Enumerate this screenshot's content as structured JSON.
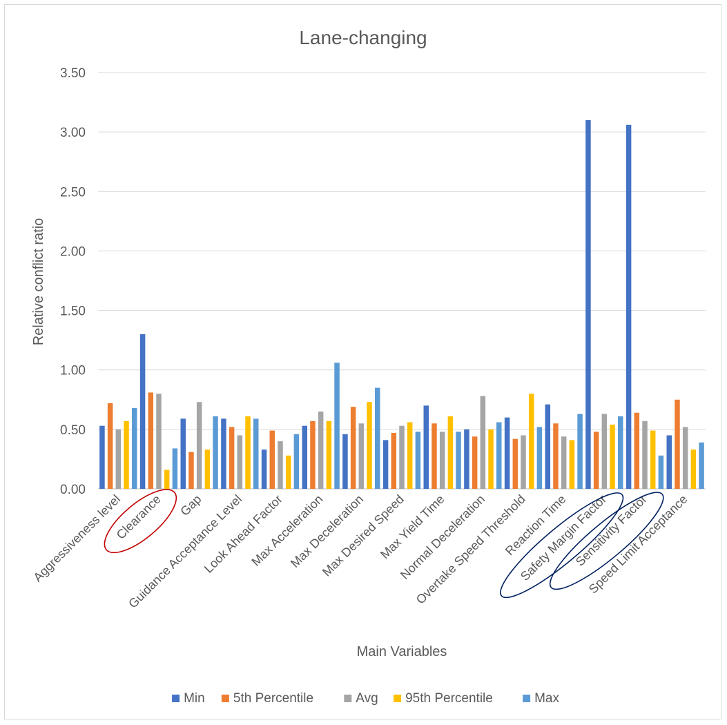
{
  "chart_data": {
    "type": "bar",
    "title": "Lane-changing",
    "xlabel": "Main Variables",
    "ylabel": "Relative conflict ratio",
    "ylim": [
      0,
      3.5
    ],
    "yticks": [
      "0.00",
      "0.50",
      "1.00",
      "1.50",
      "2.00",
      "2.50",
      "3.00",
      "3.50"
    ],
    "grid": true,
    "legend_position": "bottom",
    "categories": [
      "Aggressiveness level",
      "Clearance",
      "Gap",
      "Guidance Acceptance Level",
      "Look Ahead Factor",
      "Max Acceleration",
      "Max Deceleration",
      "Max Desired Speed",
      "Max Yield Time",
      "Normal Deceleration",
      "Overtake Speed Threshold",
      "Reaction Time",
      "Safety Margin Factor",
      "Sensitivity Factor",
      "Speed Limit Acceptance"
    ],
    "series": [
      {
        "name": "Min",
        "color": "#4472C4",
        "values": [
          0.53,
          1.3,
          0.59,
          0.59,
          0.33,
          0.53,
          0.46,
          0.41,
          0.7,
          0.5,
          0.6,
          0.71,
          3.1,
          3.06,
          0.45
        ]
      },
      {
        "name": "5th Percentile",
        "color": "#ED7D31",
        "values": [
          0.72,
          0.81,
          0.31,
          0.52,
          0.49,
          0.57,
          0.69,
          0.47,
          0.55,
          0.44,
          0.42,
          0.55,
          0.48,
          0.64,
          0.75
        ]
      },
      {
        "name": "Avg",
        "color": "#A5A5A5",
        "values": [
          0.5,
          0.8,
          0.73,
          0.45,
          0.4,
          0.65,
          0.55,
          0.53,
          0.48,
          0.78,
          0.45,
          0.44,
          0.63,
          0.57,
          0.52
        ]
      },
      {
        "name": "95th Percentile",
        "color": "#FFC000",
        "values": [
          0.57,
          0.16,
          0.33,
          0.61,
          0.28,
          0.57,
          0.73,
          0.56,
          0.61,
          0.5,
          0.8,
          0.41,
          0.54,
          0.49,
          0.33
        ]
      },
      {
        "name": "Max",
        "color": "#5B9BD5",
        "values": [
          0.68,
          0.34,
          0.61,
          0.59,
          0.46,
          1.06,
          0.85,
          0.48,
          0.48,
          0.56,
          0.52,
          0.63,
          0.61,
          0.28,
          0.39
        ]
      }
    ],
    "annotations": [
      {
        "type": "ellipse",
        "target": "Clearance",
        "color": "#C00000"
      },
      {
        "type": "ellipse",
        "target": "Safety Margin Factor",
        "color": "#002060"
      },
      {
        "type": "ellipse",
        "target": "Sensitivity Factor",
        "color": "#002060"
      }
    ]
  }
}
